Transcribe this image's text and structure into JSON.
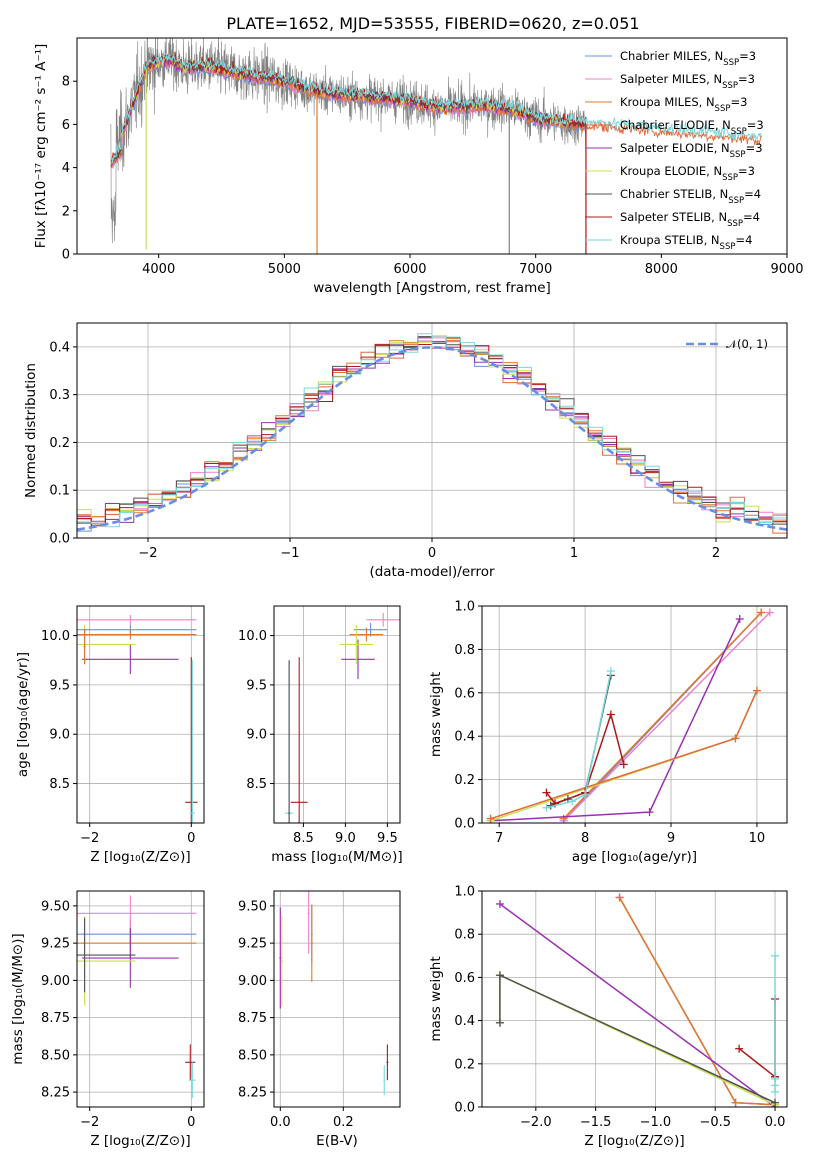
{
  "figure": {
    "title": "PLATE=1652, MJD=53555, FIBERID=0620, z=0.051"
  },
  "colors": {
    "chabrier_miles": "#6a8fe0",
    "salpeter_miles": "#ee82c8",
    "kroupa_miles": "#e07a2a",
    "chabrier_elodie": "#e06a3a",
    "salpeter_elodie": "#9a30b0",
    "kroupa_elodie": "#c8e050",
    "chabrier_stelib": "#505050",
    "salpeter_stelib": "#b01818",
    "kroupa_stelib": "#7ad8dc",
    "grid": "#b0b0b0",
    "data": "#808080",
    "normal": "#6a8fe0"
  },
  "legend_spectrum": [
    {
      "text": "Chabrier MILES, N",
      "sub": "SSP",
      "tail": "=3",
      "color_key": "chabrier_miles"
    },
    {
      "text": "Salpeter MILES, N",
      "sub": "SSP",
      "tail": "=3",
      "color_key": "salpeter_miles"
    },
    {
      "text": "Kroupa MILES, N",
      "sub": "SSP",
      "tail": "=3",
      "color_key": "kroupa_miles"
    },
    {
      "text": "Chabrier ELODIE, N",
      "sub": "SSP",
      "tail": "=3",
      "color_key": "chabrier_elodie"
    },
    {
      "text": "Salpeter ELODIE, N",
      "sub": "SSP",
      "tail": "=3",
      "color_key": "salpeter_elodie"
    },
    {
      "text": "Kroupa ELODIE, N",
      "sub": "SSP",
      "tail": "=3",
      "color_key": "kroupa_elodie"
    },
    {
      "text": "Chabrier STELIB, N",
      "sub": "SSP",
      "tail": "=4",
      "color_key": "chabrier_stelib"
    },
    {
      "text": "Salpeter STELIB, N",
      "sub": "SSP",
      "tail": "=4",
      "color_key": "salpeter_stelib"
    },
    {
      "text": "Kroupa STELIB, N",
      "sub": "SSP",
      "tail": "=4",
      "color_key": "kroupa_stelib"
    }
  ],
  "chart_data": [
    {
      "id": "spectrum",
      "type": "line",
      "xlabel": "wavelength [Angstrom, rest frame]",
      "ylabel": "Flux [fλ10⁻¹⁷ erg cm⁻² s⁻¹ A⁻¹]",
      "xlim": [
        3350,
        9000
      ],
      "ylim": [
        0,
        10
      ],
      "xticks": [
        4000,
        5000,
        6000,
        7000,
        8000,
        9000
      ],
      "yticks": [
        0,
        2,
        4,
        6,
        8
      ],
      "legend": "top-right",
      "grid": false,
      "continuum": {
        "x": [
          3620,
          3700,
          3800,
          3900,
          4000,
          4100,
          4200,
          4400,
          4600,
          4800,
          5000,
          5200,
          5400,
          5600,
          5800,
          6000,
          6200,
          6400,
          6600,
          6800,
          7000,
          7200,
          7400,
          7600,
          7800,
          8000,
          8200,
          8400,
          8600,
          8800
        ],
        "y": [
          4.8,
          5.4,
          7.0,
          8.6,
          8.9,
          9.0,
          8.6,
          8.7,
          8.4,
          8.2,
          8.0,
          7.6,
          7.4,
          7.3,
          7.2,
          7.1,
          6.8,
          6.8,
          6.9,
          6.7,
          6.3,
          6.1,
          6.0,
          5.9,
          5.8,
          5.7,
          5.6,
          5.5,
          5.4,
          5.3
        ]
      },
      "data_wavelength_range": [
        3620,
        7400
      ],
      "spikes_down": [
        {
          "x": 3900,
          "y": 0.2
        },
        {
          "x": 5260,
          "y": 0
        },
        {
          "x": 6790,
          "y": 0
        },
        {
          "x": 7400,
          "y": 0
        }
      ]
    },
    {
      "id": "residuals",
      "type": "line",
      "xlabel": "(data-model)/error",
      "ylabel": "Normed distribution",
      "xlim": [
        -2.5,
        2.5
      ],
      "ylim": [
        0,
        0.45
      ],
      "xticks": [
        -2,
        -1,
        0,
        1,
        2
      ],
      "yticks": [
        0.0,
        0.1,
        0.2,
        0.3,
        0.4
      ],
      "grid": true,
      "legend": "top-right",
      "normal_label": "𝒩(0, 1)",
      "bin_width": 0.1
    },
    {
      "id": "age-vs-Z",
      "type": "scatter",
      "xlabel": "Z [log₁₀(Z/Z⊙)]",
      "ylabel": "age  [log₁₀(age/yr)]",
      "xlim": [
        -2.25,
        0.25
      ],
      "ylim": [
        8.1,
        10.3
      ],
      "xticks": [
        -2,
        0
      ],
      "yticks": [
        8.5,
        9.0,
        9.5,
        10.0
      ],
      "grid": true,
      "points": [
        {
          "x": -1.2,
          "y": 10.06,
          "xerr": 1.3,
          "yerr": 0.05,
          "color_key": "chabrier_miles"
        },
        {
          "x": -1.2,
          "y": 10.16,
          "xerr": 1.3,
          "yerr": 0.05,
          "color_key": "salpeter_miles"
        },
        {
          "x": -1.2,
          "y": 10.01,
          "xerr": 1.3,
          "yerr": 0.05,
          "color_key": "kroupa_miles"
        },
        {
          "x": -1.2,
          "y": 9.76,
          "xerr": 0.95,
          "yerr": 0.15,
          "color_key": "salpeter_elodie"
        },
        {
          "x": -2.1,
          "y": 9.91,
          "xerr": 1.0,
          "yerr": 0.2,
          "color_key": "kroupa_elodie"
        },
        {
          "x": -2.1,
          "y": 9.89,
          "xerr": 0.02,
          "yerr": 0.18,
          "color_key": "chabrier_elodie"
        },
        {
          "x": 0.0,
          "y": 8.31,
          "xerr": 0.12,
          "yerr": 1.47,
          "color_key": "salpeter_stelib"
        },
        {
          "x": 0.02,
          "y": 8.2,
          "xerr": 0.05,
          "yerr": 1.55,
          "color_key": "kroupa_stelib"
        }
      ]
    },
    {
      "id": "age-vs-mass",
      "type": "scatter",
      "xlabel": "mass [log₁₀(M/M⊙)]",
      "ylabel": "",
      "xlim": [
        8.15,
        9.65
      ],
      "ylim": [
        8.1,
        10.3
      ],
      "xticks": [
        8.5,
        9.0,
        9.5
      ],
      "yticks": [
        8.5,
        9.0,
        9.5,
        10.0
      ],
      "grid": true,
      "points": [
        {
          "x": 9.3,
          "y": 10.06,
          "xerr": 0.2,
          "yerr": 0.07,
          "color_key": "chabrier_miles"
        },
        {
          "x": 9.45,
          "y": 10.16,
          "xerr": 0.2,
          "yerr": 0.07,
          "color_key": "salpeter_miles"
        },
        {
          "x": 9.25,
          "y": 10.01,
          "xerr": 0.2,
          "yerr": 0.07,
          "color_key": "kroupa_miles"
        },
        {
          "x": 9.15,
          "y": 9.76,
          "xerr": 0.2,
          "yerr": 0.2,
          "color_key": "salpeter_elodie"
        },
        {
          "x": 9.13,
          "y": 9.91,
          "xerr": 0.2,
          "yerr": 0.2,
          "color_key": "kroupa_elodie"
        },
        {
          "x": 8.45,
          "y": 8.31,
          "xerr": 0.1,
          "yerr": 1.47,
          "color_key": "salpeter_stelib"
        },
        {
          "x": 8.33,
          "y": 8.2,
          "xerr": 0.05,
          "yerr": 1.55,
          "color_key": "kroupa_stelib"
        },
        {
          "x": 8.33,
          "y": 8.2,
          "xerr": 0.01,
          "yerr": 1.55,
          "color_key": "chabrier_stelib"
        }
      ]
    },
    {
      "id": "massweight-vs-age",
      "type": "line",
      "xlabel": "age  [log₁₀(age/yr)]",
      "ylabel": "mass weight",
      "xlim": [
        6.8,
        10.35
      ],
      "ylim": [
        0,
        1.0
      ],
      "xticks": [
        7,
        8,
        9,
        10
      ],
      "yticks": [
        0.0,
        0.2,
        0.4,
        0.6,
        0.8,
        1.0
      ],
      "grid": true,
      "series": [
        {
          "color_key": "chabrier_miles",
          "x": [
            7.75,
            10.05
          ],
          "y": [
            0.01,
            0.97
          ]
        },
        {
          "color_key": "salpeter_miles",
          "x": [
            7.75,
            10.15
          ],
          "y": [
            0.01,
            0.97
          ]
        },
        {
          "color_key": "kroupa_miles",
          "x": [
            7.75,
            10.05
          ],
          "y": [
            0.02,
            0.97
          ]
        },
        {
          "color_key": "salpeter_elodie",
          "x": [
            6.9,
            8.75,
            9.8
          ],
          "y": [
            0.01,
            0.05,
            0.94
          ]
        },
        {
          "color_key": "kroupa_elodie",
          "x": [
            6.9,
            9.75,
            10.0
          ],
          "y": [
            0.01,
            0.39,
            0.61
          ]
        },
        {
          "color_key": "chabrier_elodie",
          "x": [
            6.9,
            9.75,
            10.0
          ],
          "y": [
            0.02,
            0.39,
            0.61
          ]
        },
        {
          "color_key": "chabrier_stelib",
          "x": [
            7.6,
            7.8,
            8.0,
            8.3
          ],
          "y": [
            0.08,
            0.11,
            0.14,
            0.68
          ]
        },
        {
          "color_key": "salpeter_stelib",
          "x": [
            7.55,
            7.65,
            8.0,
            8.3,
            8.45
          ],
          "y": [
            0.14,
            0.09,
            0.14,
            0.5,
            0.27
          ]
        },
        {
          "color_key": "kroupa_stelib",
          "x": [
            7.55,
            7.85,
            8.0,
            8.3
          ],
          "y": [
            0.07,
            0.1,
            0.13,
            0.7
          ]
        }
      ]
    },
    {
      "id": "mass-vs-Z",
      "type": "scatter",
      "xlabel": "Z [log₁₀(Z/Z⊙)]",
      "ylabel": "mass [log₁₀(M/M⊙)]",
      "xlim": [
        -2.25,
        0.25
      ],
      "ylim": [
        8.15,
        9.6
      ],
      "xticks": [
        -2,
        0
      ],
      "yticks": [
        8.25,
        8.5,
        8.75,
        9.0,
        9.25,
        9.5
      ],
      "grid": true,
      "points": [
        {
          "x": -1.2,
          "y": 9.31,
          "xerr": 1.3,
          "yerr": 0.1,
          "color_key": "chabrier_miles"
        },
        {
          "x": -1.2,
          "y": 9.45,
          "xerr": 1.3,
          "yerr": 0.12,
          "color_key": "salpeter_miles"
        },
        {
          "x": -1.2,
          "y": 9.25,
          "xerr": 1.3,
          "yerr": 0.1,
          "color_key": "kroupa_miles"
        },
        {
          "x": -1.2,
          "y": 9.15,
          "xerr": 0.95,
          "yerr": 0.2,
          "color_key": "salpeter_elodie"
        },
        {
          "x": -2.1,
          "y": 9.13,
          "xerr": 1.0,
          "yerr": 0.3,
          "color_key": "kroupa_elodie"
        },
        {
          "x": -2.1,
          "y": 9.17,
          "xerr": 1.0,
          "yerr": 0.25,
          "color_key": "chabrier_stelib"
        },
        {
          "x": -0.02,
          "y": 8.45,
          "xerr": 0.1,
          "yerr": 0.12,
          "color_key": "salpeter_stelib"
        },
        {
          "x": 0.02,
          "y": 8.33,
          "xerr": 0.07,
          "yerr": 0.12,
          "color_key": "kroupa_stelib"
        }
      ]
    },
    {
      "id": "mass-vs-EBV",
      "type": "scatter",
      "xlabel": "E(B-V)",
      "ylabel": "",
      "xlim": [
        -0.02,
        0.38
      ],
      "ylim": [
        8.15,
        9.6
      ],
      "xticks": [
        0.0,
        0.2
      ],
      "yticks": [
        8.25,
        8.5,
        8.75,
        9.0,
        9.25,
        9.5
      ],
      "grid": true,
      "points": [
        {
          "x": 0.1,
          "y": 9.31,
          "xerr": 0.003,
          "yerr": 0.19,
          "color_key": "chabrier_miles"
        },
        {
          "x": 0.09,
          "y": 9.45,
          "xerr": 0.003,
          "yerr": 0.27,
          "color_key": "salpeter_miles"
        },
        {
          "x": 0.1,
          "y": 9.25,
          "xerr": 0.003,
          "yerr": 0.26,
          "color_key": "kroupa_miles"
        },
        {
          "x": 0.0,
          "y": 9.15,
          "xerr": 0.003,
          "yerr": 0.34,
          "color_key": "salpeter_elodie"
        },
        {
          "x": 0.005,
          "y": 9.13,
          "xerr": 0.003,
          "yerr": 0.3,
          "color_key": "kroupa_elodie"
        },
        {
          "x": 0.34,
          "y": 8.45,
          "xerr": 0.003,
          "yerr": 0.12,
          "color_key": "salpeter_stelib"
        },
        {
          "x": 0.33,
          "y": 8.33,
          "xerr": 0.003,
          "yerr": 0.1,
          "color_key": "kroupa_stelib"
        }
      ]
    },
    {
      "id": "massweight-vs-Z",
      "type": "line",
      "xlabel": "Z [log₁₀(Z/Z⊙)]",
      "ylabel": "mass weight",
      "xlim": [
        -2.45,
        0.1
      ],
      "ylim": [
        0,
        1.0
      ],
      "xticks": [
        -2.0,
        -1.5,
        -1.0,
        -0.5,
        0.0
      ],
      "yticks": [
        0.0,
        0.2,
        0.4,
        0.6,
        0.8,
        1.0
      ],
      "grid": true,
      "series": [
        {
          "color_key": "chabrier_miles",
          "x": [
            -1.3,
            -0.33,
            0.0
          ],
          "y": [
            0.97,
            0.02,
            0.01
          ]
        },
        {
          "color_key": "salpeter_miles",
          "x": [
            -1.3,
            -0.33,
            0.0
          ],
          "y": [
            0.97,
            0.02,
            0.01
          ]
        },
        {
          "color_key": "kroupa_miles",
          "x": [
            -1.3,
            -0.33,
            0.0
          ],
          "y": [
            0.97,
            0.02,
            0.01
          ]
        },
        {
          "color_key": "salpeter_elodie",
          "x": [
            -2.3,
            0.0
          ],
          "y": [
            0.94,
            0.0
          ]
        },
        {
          "color_key": "kroupa_elodie",
          "x": [
            -2.3,
            -2.3,
            0.0
          ],
          "y": [
            0.39,
            0.61,
            0.01
          ]
        },
        {
          "color_key": "chabrier_stelib",
          "x": [
            -2.3,
            -2.3,
            0.0
          ],
          "y": [
            0.39,
            0.61,
            0.02
          ]
        },
        {
          "color_key": "salpeter_stelib",
          "x": [
            -0.3,
            0.0,
            0.0,
            0.0
          ],
          "y": [
            0.27,
            0.14,
            0.5,
            0.14
          ]
        },
        {
          "color_key": "kroupa_stelib",
          "x": [
            0.0,
            0.0,
            0.0,
            0.0
          ],
          "y": [
            0.07,
            0.1,
            0.13,
            0.7
          ]
        }
      ]
    }
  ]
}
